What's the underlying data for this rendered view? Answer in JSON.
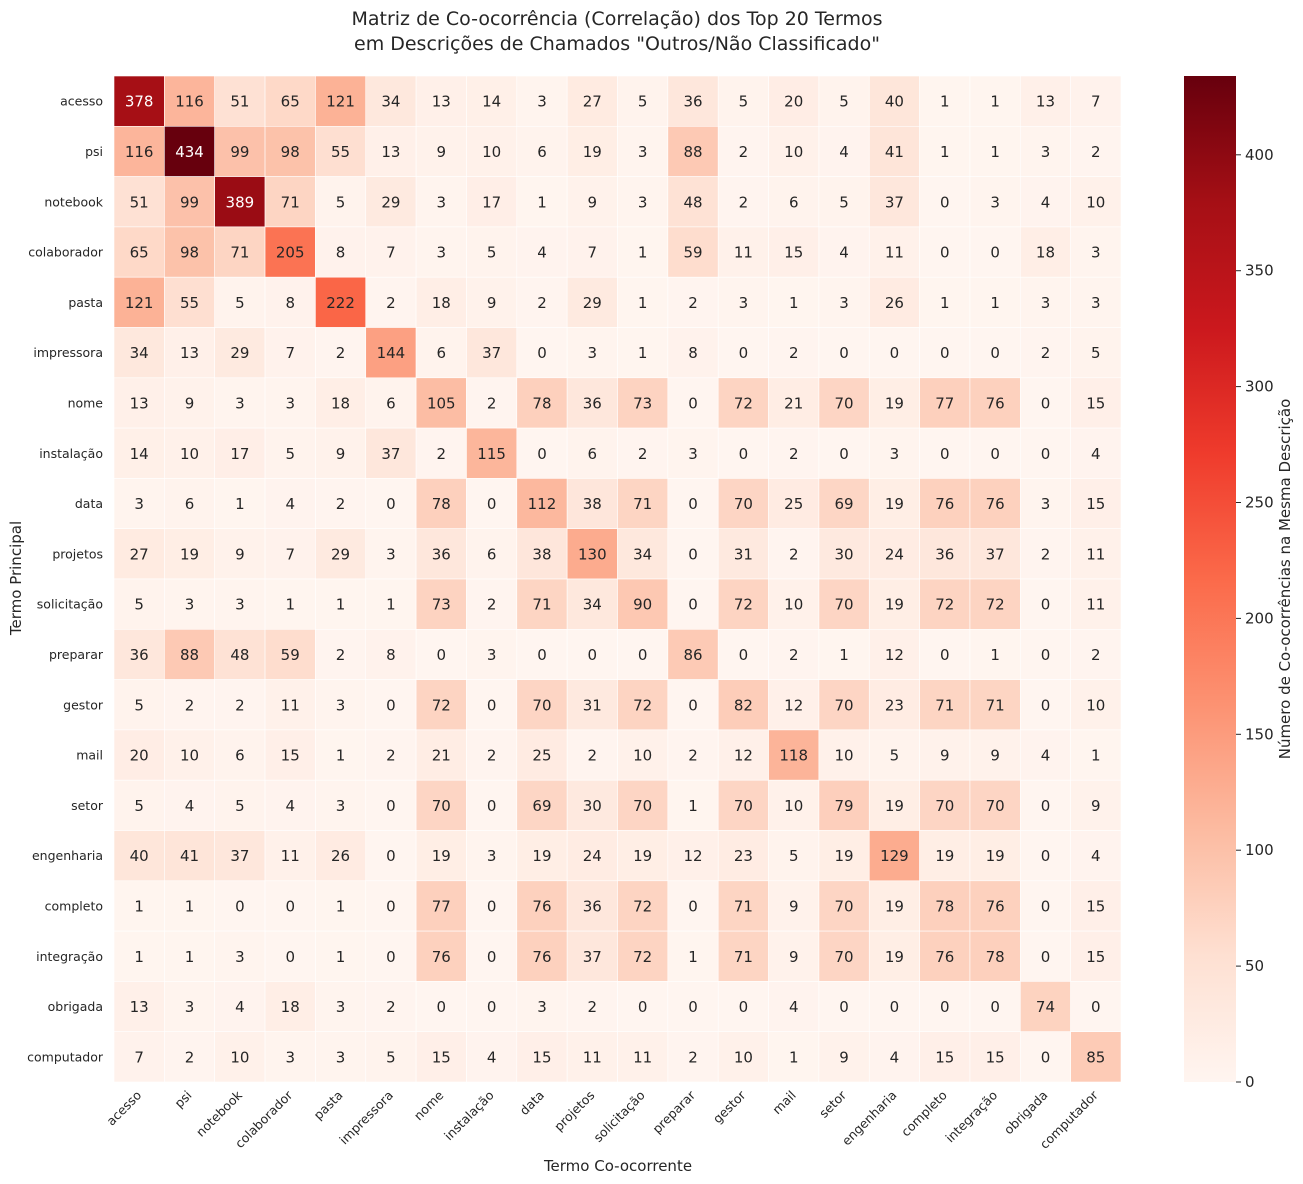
{
  "chart_data": {
    "type": "heatmap",
    "title": "Matriz de Co-ocorrência (Correlação) dos Top 20 Termos\nem Descrições de Chamados \"Outros/Não Classificado\"",
    "title_lines": [
      "Matriz de Co-ocorrência (Correlação) dos Top 20 Termos",
      "em Descrições de Chamados \"Outros/Não Classificado\""
    ],
    "xlabel": "Termo Co-ocorrente",
    "ylabel": "Termo Principal",
    "colorbar_label": "Número de Co-ocorrências na Mesma Descrição",
    "colorbar_ticks": [
      0,
      50,
      100,
      150,
      200,
      250,
      300,
      350,
      400
    ],
    "colormap": "Reds",
    "vmin": 0,
    "vmax": 434,
    "rows": [
      "acesso",
      "psi",
      "notebook",
      "colaborador",
      "pasta",
      "impressora",
      "nome",
      "instalação",
      "data",
      "projetos",
      "solicitação",
      "preparar",
      "gestor",
      "mail",
      "setor",
      "engenharia",
      "completo",
      "integração",
      "obrigada",
      "computador"
    ],
    "columns": [
      "acesso",
      "psi",
      "notebook",
      "colaborador",
      "pasta",
      "impressora",
      "nome",
      "instalação",
      "data",
      "projetos",
      "solicitação",
      "preparar",
      "gestor",
      "mail",
      "setor",
      "engenharia",
      "completo",
      "integração",
      "obrigada",
      "computador"
    ],
    "values": [
      [
        378,
        116,
        51,
        65,
        121,
        34,
        13,
        14,
        3,
        27,
        5,
        36,
        5,
        20,
        5,
        40,
        1,
        1,
        13,
        7
      ],
      [
        116,
        434,
        99,
        98,
        55,
        13,
        9,
        10,
        6,
        19,
        3,
        88,
        2,
        10,
        4,
        41,
        1,
        1,
        3,
        2
      ],
      [
        51,
        99,
        389,
        71,
        5,
        29,
        3,
        17,
        1,
        9,
        3,
        48,
        2,
        6,
        5,
        37,
        0,
        3,
        4,
        10
      ],
      [
        65,
        98,
        71,
        205,
        8,
        7,
        3,
        5,
        4,
        7,
        1,
        59,
        11,
        15,
        4,
        11,
        0,
        0,
        18,
        3
      ],
      [
        121,
        55,
        5,
        8,
        222,
        2,
        18,
        9,
        2,
        29,
        1,
        2,
        3,
        1,
        3,
        26,
        1,
        1,
        3,
        3
      ],
      [
        34,
        13,
        29,
        7,
        2,
        144,
        6,
        37,
        0,
        3,
        1,
        8,
        0,
        2,
        0,
        0,
        0,
        0,
        2,
        5
      ],
      [
        13,
        9,
        3,
        3,
        18,
        6,
        105,
        2,
        78,
        36,
        73,
        0,
        72,
        21,
        70,
        19,
        77,
        76,
        0,
        15
      ],
      [
        14,
        10,
        17,
        5,
        9,
        37,
        2,
        115,
        0,
        6,
        2,
        3,
        0,
        2,
        0,
        3,
        0,
        0,
        0,
        4
      ],
      [
        3,
        6,
        1,
        4,
        2,
        0,
        78,
        0,
        112,
        38,
        71,
        0,
        70,
        25,
        69,
        19,
        76,
        76,
        3,
        15
      ],
      [
        27,
        19,
        9,
        7,
        29,
        3,
        36,
        6,
        38,
        130,
        34,
        0,
        31,
        2,
        30,
        24,
        36,
        37,
        2,
        11
      ],
      [
        5,
        3,
        3,
        1,
        1,
        1,
        73,
        2,
        71,
        34,
        90,
        0,
        72,
        10,
        70,
        19,
        72,
        72,
        0,
        11
      ],
      [
        36,
        88,
        48,
        59,
        2,
        8,
        0,
        3,
        0,
        0,
        0,
        86,
        0,
        2,
        1,
        12,
        0,
        1,
        0,
        2
      ],
      [
        5,
        2,
        2,
        11,
        3,
        0,
        72,
        0,
        70,
        31,
        72,
        0,
        82,
        12,
        70,
        23,
        71,
        71,
        0,
        10
      ],
      [
        20,
        10,
        6,
        15,
        1,
        2,
        21,
        2,
        25,
        2,
        10,
        2,
        12,
        118,
        10,
        5,
        9,
        9,
        4,
        1
      ],
      [
        5,
        4,
        5,
        4,
        3,
        0,
        70,
        0,
        69,
        30,
        70,
        1,
        70,
        10,
        79,
        19,
        70,
        70,
        0,
        9
      ],
      [
        40,
        41,
        37,
        11,
        26,
        0,
        19,
        3,
        19,
        24,
        19,
        12,
        23,
        5,
        19,
        129,
        19,
        19,
        0,
        4
      ],
      [
        1,
        1,
        0,
        0,
        1,
        0,
        77,
        0,
        76,
        36,
        72,
        0,
        71,
        9,
        70,
        19,
        78,
        76,
        0,
        15
      ],
      [
        1,
        1,
        3,
        0,
        1,
        0,
        76,
        0,
        76,
        37,
        72,
        1,
        71,
        9,
        70,
        19,
        76,
        78,
        0,
        15
      ],
      [
        13,
        3,
        4,
        18,
        3,
        2,
        0,
        0,
        3,
        2,
        0,
        0,
        0,
        4,
        0,
        0,
        0,
        0,
        74,
        0
      ],
      [
        7,
        2,
        10,
        3,
        3,
        5,
        15,
        4,
        15,
        11,
        11,
        2,
        10,
        1,
        9,
        4,
        15,
        15,
        0,
        85
      ]
    ]
  }
}
